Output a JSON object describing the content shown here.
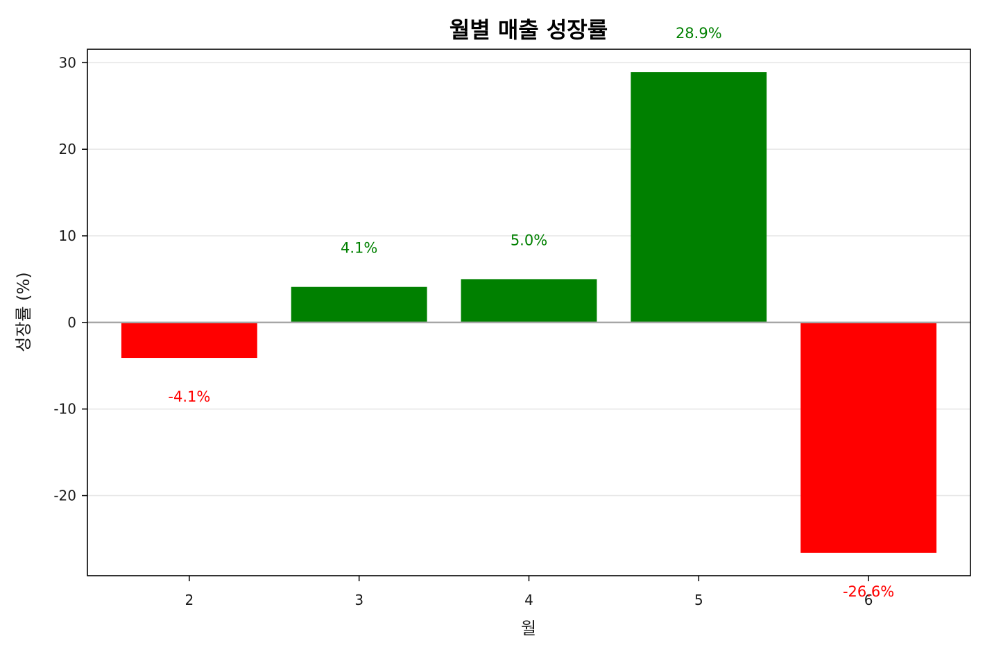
{
  "chart_data": {
    "type": "bar",
    "title": "월별 매출 성장률",
    "xlabel": "월",
    "ylabel": "성장률 (%)",
    "categories": [
      "2",
      "3",
      "4",
      "5",
      "6"
    ],
    "values": [
      -4.1,
      4.1,
      5.0,
      28.9,
      -26.6
    ],
    "data_labels": [
      "-4.1%",
      "4.1%",
      "5.0%",
      "28.9%",
      "-26.6%"
    ],
    "ylim": [
      -29.25,
      31.55
    ],
    "yticks": [
      -20,
      -10,
      0,
      10,
      20,
      30
    ],
    "ytick_labels": [
      "-20",
      "-10",
      "0",
      "10",
      "20",
      "30"
    ],
    "grid": "y-major",
    "zero_line": true,
    "legend": "none",
    "colors": {
      "positive": "#008000",
      "negative": "#ff0000",
      "grid": "#e6e6e6",
      "zero_line": "#a6a6a6",
      "axes": "#000000"
    }
  }
}
